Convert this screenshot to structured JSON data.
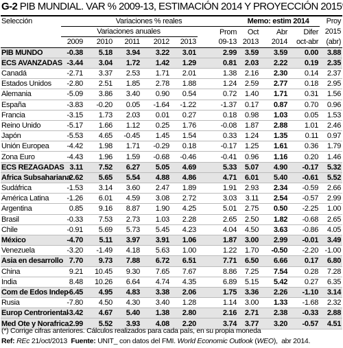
{
  "title": {
    "code": "G-2",
    "text": "PIB MUNDIAL. VAR % 2009-13, ESTIMACIÓN 2014 Y PROYECCIÓN 2015*"
  },
  "header": {
    "selection": "Selección",
    "real": "Variaciones % reales",
    "memo": "Memo: estim 2014",
    "proy": "Proy",
    "annual": "Variaciones anuales",
    "prom": "Prom",
    "oct": "Oct",
    "abr": "Abr",
    "difer": "Difer",
    "proy_year": "2015",
    "years": [
      "2009",
      "2010",
      "2011",
      "2012",
      "2013"
    ],
    "prom_period": "09-13",
    "oct_year": "2013",
    "abr_year": "2014",
    "difer_period": "oct-abr",
    "proy_abr": "(abr)"
  },
  "table": {
    "rows": [
      {
        "name": "PIB MUNDO",
        "bold": true,
        "values": [
          "-0.38",
          "5.18",
          "3.94",
          "3.22",
          "3.01",
          "2.99",
          "3.59",
          "3.59",
          "0.00",
          "3.88"
        ]
      },
      {
        "name": "ECS AVANZADAS",
        "bold": true,
        "values": [
          "-3.44",
          "3.04",
          "1.72",
          "1.42",
          "1.29",
          "0.81",
          "2.03",
          "2.22",
          "0.19",
          "2.35"
        ]
      },
      {
        "name": "Canadá",
        "bold": false,
        "values": [
          "-2.71",
          "3.37",
          "2.53",
          "1.71",
          "2.01",
          "1.38",
          "2.16",
          "2.30",
          "0.14",
          "2.37"
        ]
      },
      {
        "name": "Estados Unidos",
        "bold": false,
        "values": [
          "-2.80",
          "2.51",
          "1.85",
          "2.78",
          "1.88",
          "1.24",
          "2.59",
          "2.77",
          "0.18",
          "2.95"
        ]
      },
      {
        "name": "Alemania",
        "bold": false,
        "values": [
          "-5.09",
          "3.86",
          "3.40",
          "0.90",
          "0.54",
          "0.72",
          "1.40",
          "1.71",
          "0.31",
          "1.56"
        ]
      },
      {
        "name": "España",
        "bold": false,
        "values": [
          "-3.83",
          "-0.20",
          "0.05",
          "-1.64",
          "-1.22",
          "-1.37",
          "0.17",
          "0.87",
          "0.70",
          "0.96"
        ]
      },
      {
        "name": "Francia",
        "bold": false,
        "values": [
          "-3.15",
          "1.73",
          "2.03",
          "0.01",
          "0.27",
          "0.18",
          "0.98",
          "1.03",
          "0.05",
          "1.53"
        ]
      },
      {
        "name": "Reino Unido",
        "bold": false,
        "values": [
          "-5.17",
          "1.66",
          "1.12",
          "0.25",
          "1.76",
          "-0.08",
          "1.87",
          "2.88",
          "1.01",
          "2.46"
        ]
      },
      {
        "name": "Japón",
        "bold": false,
        "values": [
          "-5.53",
          "4.65",
          "-0.45",
          "1.45",
          "1.54",
          "0.33",
          "1.24",
          "1.35",
          "0.11",
          "0.97"
        ]
      },
      {
        "name": "Unión Europea",
        "bold": false,
        "values": [
          "-4.42",
          "1.98",
          "1.71",
          "-0.29",
          "0.18",
          "-0.17",
          "1.25",
          "1.61",
          "0.36",
          "1.79"
        ]
      },
      {
        "name": "Zona Euro",
        "bold": false,
        "values": [
          "-4.43",
          "1.96",
          "1.59",
          "-0.68",
          "-0.46",
          "-0.41",
          "0.96",
          "1.16",
          "0.20",
          "1.46"
        ]
      },
      {
        "name": "ECS REZAGADAS",
        "bold": true,
        "values": [
          "3.11",
          "7.52",
          "6.27",
          "5.05",
          "4.69",
          "5.33",
          "5.07",
          "4.90",
          "-0.17",
          "5.32"
        ]
      },
      {
        "name": "Africa Subsahariana",
        "bold": true,
        "values": [
          "2.62",
          "5.65",
          "5.54",
          "4.88",
          "4.86",
          "4.71",
          "6.01",
          "5.40",
          "-0.61",
          "5.52"
        ]
      },
      {
        "name": "Sudáfrica",
        "bold": false,
        "values": [
          "-1.53",
          "3.14",
          "3.60",
          "2.47",
          "1.89",
          "1.91",
          "2.93",
          "2.34",
          "-0.59",
          "2.66"
        ]
      },
      {
        "name": "América Latina",
        "bold": false,
        "values": [
          "-1.26",
          "6.01",
          "4.59",
          "3.08",
          "2.72",
          "3.03",
          "3.11",
          "2.54",
          "-0.57",
          "2.99"
        ]
      },
      {
        "name": "Argentina",
        "bold": false,
        "values": [
          "0.85",
          "9.16",
          "8.87",
          "1.90",
          "4.25",
          "5.01",
          "2.75",
          "0.50",
          "-2.25",
          "1.00"
        ]
      },
      {
        "name": "Brasil",
        "bold": false,
        "values": [
          "-0.33",
          "7.53",
          "2.73",
          "1.03",
          "2.28",
          "2.65",
          "2.50",
          "1.82",
          "-0.68",
          "2.65"
        ]
      },
      {
        "name": "Chile",
        "bold": false,
        "values": [
          "-0.91",
          "5.69",
          "5.73",
          "5.45",
          "4.23",
          "4.04",
          "4.50",
          "3.63",
          "-0.86",
          "4.05"
        ]
      },
      {
        "name": "México",
        "bold": true,
        "values": [
          "-4.70",
          "5.11",
          "3.97",
          "3.91",
          "1.06",
          "1.87",
          "3.00",
          "2.99",
          "-0.01",
          "3.49"
        ]
      },
      {
        "name": "Venezuela",
        "bold": false,
        "values": [
          "-3.20",
          "-1.49",
          "4.18",
          "5.63",
          "1.00",
          "1.22",
          "1.70",
          "-0.50",
          "-2.20",
          "-1.00"
        ]
      },
      {
        "name": "Asia en desarrollo",
        "bold": true,
        "values": [
          "7.70",
          "9.73",
          "7.88",
          "6.72",
          "6.51",
          "7.71",
          "6.50",
          "6.66",
          "0.17",
          "6.80"
        ]
      },
      {
        "name": "China",
        "bold": false,
        "values": [
          "9.21",
          "10.45",
          "9.30",
          "7.65",
          "7.67",
          "8.86",
          "7.25",
          "7.54",
          "0.28",
          "7.28"
        ]
      },
      {
        "name": "India",
        "bold": false,
        "values": [
          "8.48",
          "10.26",
          "6.64",
          "4.74",
          "4.35",
          "6.89",
          "5.15",
          "5.42",
          "0.27",
          "6.35"
        ]
      },
      {
        "name": "Com de Edos Indep",
        "bold": true,
        "values": [
          "-6.45",
          "4.95",
          "4.83",
          "3.38",
          "2.06",
          "1.75",
          "3.36",
          "2.26",
          "-1.10",
          "3.14"
        ]
      },
      {
        "name": "Rusia",
        "bold": false,
        "values": [
          "-7.80",
          "4.50",
          "4.30",
          "3.40",
          "1.28",
          "1.14",
          "3.00",
          "1.33",
          "-1.68",
          "2.32"
        ]
      },
      {
        "name": "Europ Centroriental",
        "bold": true,
        "values": [
          "-3.42",
          "4.67",
          "5.40",
          "1.38",
          "2.80",
          "2.16",
          "2.71",
          "2.38",
          "-0.33",
          "2.88"
        ]
      },
      {
        "name": "Med Ote y Norafrica",
        "bold": true,
        "values": [
          "2.99",
          "5.52",
          "3.93",
          "4.08",
          "2.20",
          "3.74",
          "3.77",
          "3.20",
          "-0.57",
          "4.51"
        ]
      }
    ]
  },
  "footer": {
    "note": "(*) Corrige cifras anteriores. Cálculos realizados para cada país, en su propia moneda",
    "ref_label": "Ref:",
    "ref_doc": "REc",
    "ref_date": "21/oct/2013",
    "source_label": "Fuente:",
    "source_text": "UNIT_ con datos del FMI.",
    "source_pub": "World Economic Outlook",
    "source_abbr": "WEO",
    "source_date": "abr 2014."
  }
}
